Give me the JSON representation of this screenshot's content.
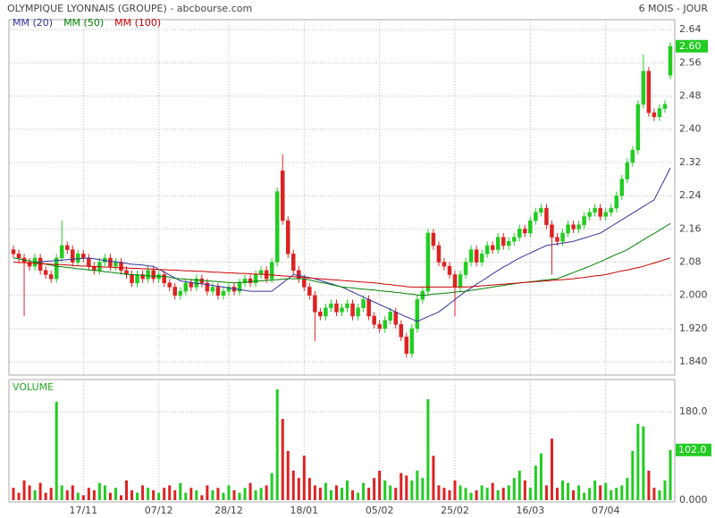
{
  "chart_data": {
    "type": "candlestick",
    "title": "OLYMPIQUE LYONNAIS (GROUPE) - abcbourse.com",
    "subtitle": "6 MOIS - JOUR",
    "volume_title": "VOLUME",
    "categories": [
      null,
      null,
      null,
      null,
      null,
      null,
      null,
      null,
      null,
      null,
      null,
      null,
      null,
      "17/11",
      null,
      null,
      null,
      null,
      null,
      null,
      null,
      null,
      null,
      null,
      null,
      null,
      null,
      "07/12",
      null,
      null,
      null,
      null,
      null,
      null,
      null,
      null,
      null,
      null,
      null,
      null,
      "28/12",
      null,
      null,
      null,
      null,
      null,
      null,
      null,
      null,
      null,
      null,
      null,
      null,
      null,
      "18/01",
      null,
      null,
      null,
      null,
      null,
      null,
      null,
      null,
      null,
      null,
      null,
      null,
      null,
      "05/02",
      null,
      null,
      null,
      null,
      null,
      null,
      null,
      null,
      null,
      null,
      null,
      null,
      null,
      "25/02",
      null,
      null,
      null,
      null,
      null,
      null,
      null,
      null,
      null,
      null,
      null,
      null,
      null,
      "16/03",
      null,
      null,
      null,
      null,
      null,
      null,
      null,
      null,
      null,
      null,
      null,
      null,
      null,
      "07/04",
      null,
      null,
      null,
      null,
      null,
      null,
      null,
      null,
      null,
      null,
      null,
      null
    ],
    "open": [
      2.11,
      2.1,
      2.09,
      2.08,
      2.07,
      2.09,
      2.06,
      2.05,
      2.04,
      2.09,
      2.12,
      2.11,
      2.08,
      2.1,
      2.09,
      2.07,
      2.06,
      2.08,
      2.09,
      2.07,
      2.08,
      2.06,
      2.05,
      2.03,
      2.05,
      2.04,
      2.06,
      2.04,
      2.05,
      2.03,
      2.02,
      2.0,
      2.01,
      2.03,
      2.02,
      2.04,
      2.03,
      2.01,
      2.02,
      2.0,
      2.01,
      2.02,
      2.01,
      2.03,
      2.04,
      2.03,
      2.05,
      2.06,
      2.04,
      2.08,
      2.3,
      2.18,
      2.1,
      2.06,
      2.04,
      2.02,
      2.0,
      1.96,
      1.95,
      1.97,
      1.98,
      1.96,
      1.97,
      1.98,
      1.95,
      1.97,
      1.99,
      1.95,
      1.93,
      1.92,
      1.94,
      1.96,
      1.93,
      1.9,
      1.86,
      1.92,
      1.99,
      2.01,
      2.15,
      2.12,
      2.08,
      2.07,
      2.05,
      2.02,
      2.05,
      2.08,
      2.11,
      2.08,
      2.1,
      2.12,
      2.11,
      2.14,
      2.12,
      2.13,
      2.14,
      2.16,
      2.15,
      2.18,
      2.2,
      2.21,
      2.17,
      2.14,
      2.13,
      2.15,
      2.17,
      2.16,
      2.17,
      2.19,
      2.2,
      2.21,
      2.19,
      2.2,
      2.21,
      2.24,
      2.28,
      2.32,
      2.35,
      2.46,
      2.54,
      2.44,
      2.43,
      2.45,
      2.53
    ],
    "high": [
      2.12,
      2.11,
      2.1,
      2.09,
      2.1,
      2.1,
      2.07,
      2.06,
      2.1,
      2.18,
      2.13,
      2.12,
      2.11,
      2.11,
      2.1,
      2.08,
      2.09,
      2.1,
      2.1,
      2.09,
      2.09,
      2.07,
      2.06,
      2.06,
      2.06,
      2.07,
      2.07,
      2.06,
      2.06,
      2.04,
      2.03,
      2.02,
      2.04,
      2.04,
      2.05,
      2.05,
      2.04,
      2.03,
      2.03,
      2.02,
      2.03,
      2.03,
      2.04,
      2.05,
      2.05,
      2.06,
      2.07,
      2.07,
      2.09,
      2.26,
      2.34,
      2.19,
      2.11,
      2.07,
      2.05,
      2.03,
      2.01,
      1.97,
      1.98,
      1.99,
      1.99,
      1.98,
      1.99,
      1.99,
      1.98,
      2.0,
      2.0,
      1.96,
      1.94,
      1.95,
      1.97,
      1.97,
      1.94,
      1.91,
      1.93,
      2.0,
      2.02,
      2.16,
      2.16,
      2.13,
      2.09,
      2.08,
      2.06,
      2.06,
      2.09,
      2.12,
      2.12,
      2.11,
      2.13,
      2.13,
      2.15,
      2.15,
      2.14,
      2.15,
      2.17,
      2.17,
      2.19,
      2.21,
      2.22,
      2.22,
      2.18,
      2.15,
      2.16,
      2.18,
      2.18,
      2.18,
      2.2,
      2.21,
      2.22,
      2.22,
      2.21,
      2.22,
      2.25,
      2.29,
      2.33,
      2.36,
      2.47,
      2.58,
      2.55,
      2.45,
      2.46,
      2.47,
      2.61
    ],
    "low": [
      2.09,
      2.08,
      1.95,
      2.06,
      2.06,
      2.05,
      2.04,
      2.03,
      2.03,
      2.08,
      2.1,
      2.07,
      2.07,
      2.08,
      2.06,
      2.05,
      2.05,
      2.07,
      2.06,
      2.06,
      2.05,
      2.04,
      2.02,
      2.02,
      2.03,
      2.03,
      2.03,
      2.03,
      2.02,
      2.01,
      1.99,
      1.99,
      2.0,
      2.01,
      2.01,
      2.02,
      2.0,
      2.0,
      1.99,
      1.99,
      2.0,
      2.0,
      2.0,
      2.02,
      2.02,
      2.02,
      2.04,
      2.03,
      2.03,
      2.07,
      2.17,
      2.09,
      2.05,
      2.03,
      2.01,
      1.99,
      1.89,
      1.94,
      1.94,
      1.96,
      1.95,
      1.95,
      1.96,
      1.94,
      1.94,
      1.96,
      1.94,
      1.92,
      1.91,
      1.91,
      1.93,
      1.92,
      1.89,
      1.85,
      1.85,
      1.91,
      1.98,
      2.0,
      2.11,
      2.07,
      2.06,
      2.04,
      1.95,
      2.01,
      2.04,
      2.07,
      2.07,
      2.07,
      2.09,
      2.1,
      2.1,
      2.11,
      2.11,
      2.12,
      2.13,
      2.14,
      2.14,
      2.17,
      2.19,
      2.16,
      2.05,
      2.12,
      2.12,
      2.14,
      2.15,
      2.15,
      2.16,
      2.18,
      2.19,
      2.18,
      2.18,
      2.19,
      2.2,
      2.23,
      2.27,
      2.31,
      2.34,
      2.45,
      2.43,
      2.42,
      2.42,
      2.44,
      2.52
    ],
    "close": [
      2.1,
      2.09,
      2.08,
      2.07,
      2.09,
      2.06,
      2.05,
      2.04,
      2.09,
      2.12,
      2.11,
      2.08,
      2.1,
      2.09,
      2.07,
      2.06,
      2.08,
      2.09,
      2.07,
      2.08,
      2.06,
      2.05,
      2.03,
      2.05,
      2.04,
      2.06,
      2.04,
      2.05,
      2.03,
      2.02,
      2.0,
      2.01,
      2.03,
      2.02,
      2.04,
      2.03,
      2.01,
      2.02,
      2.0,
      2.01,
      2.02,
      2.01,
      2.03,
      2.04,
      2.03,
      2.05,
      2.06,
      2.04,
      2.08,
      2.25,
      2.18,
      2.1,
      2.06,
      2.04,
      2.02,
      2.0,
      1.96,
      1.95,
      1.97,
      1.98,
      1.96,
      1.97,
      1.98,
      1.95,
      1.97,
      1.99,
      1.95,
      1.93,
      1.92,
      1.94,
      1.96,
      1.93,
      1.9,
      1.86,
      1.92,
      1.99,
      2.01,
      2.15,
      2.12,
      2.08,
      2.07,
      2.05,
      2.02,
      2.05,
      2.08,
      2.11,
      2.08,
      2.1,
      2.12,
      2.11,
      2.14,
      2.12,
      2.13,
      2.14,
      2.16,
      2.15,
      2.18,
      2.2,
      2.21,
      2.17,
      2.14,
      2.13,
      2.15,
      2.17,
      2.16,
      2.17,
      2.19,
      2.2,
      2.21,
      2.19,
      2.2,
      2.21,
      2.24,
      2.28,
      2.32,
      2.35,
      2.46,
      2.54,
      2.44,
      2.43,
      2.45,
      2.46,
      2.6
    ],
    "close_label": "2.60",
    "volume": [
      25,
      15,
      40,
      30,
      20,
      35,
      15,
      25,
      200,
      30,
      20,
      30,
      15,
      10,
      25,
      20,
      35,
      30,
      15,
      25,
      10,
      40,
      20,
      15,
      30,
      25,
      20,
      15,
      25,
      30,
      20,
      35,
      15,
      25,
      20,
      10,
      30,
      20,
      25,
      15,
      30,
      20,
      15,
      25,
      35,
      20,
      25,
      30,
      55,
      225,
      165,
      100,
      60,
      45,
      90,
      45,
      30,
      25,
      35,
      20,
      30,
      25,
      40,
      20,
      15,
      35,
      25,
      45,
      60,
      40,
      30,
      25,
      55,
      50,
      40,
      60,
      45,
      205,
      90,
      30,
      25,
      20,
      40,
      30,
      25,
      15,
      20,
      30,
      25,
      35,
      20,
      25,
      30,
      45,
      60,
      40,
      25,
      70,
      95,
      30,
      125,
      25,
      40,
      35,
      20,
      30,
      15,
      25,
      40,
      30,
      35,
      20,
      25,
      30,
      45,
      100,
      155,
      150,
      60,
      25,
      20,
      40,
      102
    ],
    "volume_label": "102.0",
    "series": [
      {
        "name": "MM (20)",
        "color": "#333399",
        "values": [
          null,
          null,
          null,
          null,
          2.08,
          2.081,
          2.082,
          2.083,
          2.084,
          2.085,
          2.086,
          2.087,
          2.088,
          2.089,
          2.09,
          2.088,
          2.086,
          2.084,
          2.082,
          2.081,
          2.079,
          2.077,
          2.075,
          2.074,
          2.073,
          2.071,
          2.07,
          2.063,
          2.056,
          2.049,
          2.042,
          2.035,
          2.033,
          2.031,
          2.029,
          2.028,
          2.026,
          2.024,
          2.022,
          2.02,
          2.018,
          2.016,
          2.014,
          2.012,
          2.01,
          2.01,
          2.01,
          2.01,
          2.01,
          2.02,
          2.03,
          2.04,
          2.05,
          2.048,
          2.045,
          2.043,
          2.04,
          2.036,
          2.032,
          2.028,
          2.024,
          2.02,
          2.014,
          2.008,
          2.002,
          1.996,
          1.99,
          1.984,
          1.978,
          1.972,
          1.966,
          1.96,
          1.954,
          1.948,
          1.943,
          1.937,
          1.943,
          1.949,
          1.954,
          1.96,
          1.97,
          1.98,
          1.99,
          2.0,
          2.01,
          2.018,
          2.027,
          2.035,
          2.043,
          2.052,
          2.06,
          2.068,
          2.075,
          2.083,
          2.09,
          2.096,
          2.102,
          2.108,
          2.114,
          2.12,
          2.122,
          2.124,
          2.126,
          2.128,
          2.13,
          2.134,
          2.138,
          2.142,
          2.146,
          2.15,
          2.158,
          2.166,
          2.174,
          2.182,
          2.19,
          2.198,
          2.206,
          2.214,
          2.222,
          2.23,
          2.256,
          2.281,
          2.307
        ]
      },
      {
        "name": "MM (50)",
        "color": "#008000",
        "values": [
          2.09,
          2.088,
          2.085,
          2.083,
          2.08,
          2.078,
          2.075,
          2.073,
          2.07,
          2.069,
          2.067,
          2.066,
          2.064,
          2.063,
          2.061,
          2.06,
          2.059,
          2.057,
          2.056,
          2.054,
          2.053,
          2.051,
          2.05,
          2.049,
          2.048,
          2.047,
          2.046,
          2.046,
          2.045,
          2.044,
          2.041,
          2.04,
          2.039,
          2.038,
          2.037,
          2.036,
          2.035,
          2.034,
          2.033,
          2.032,
          2.031,
          2.03,
          2.031,
          2.032,
          2.033,
          2.034,
          2.035,
          2.036,
          2.037,
          2.038,
          2.039,
          2.04,
          2.04,
          2.04,
          2.04,
          2.037,
          2.034,
          2.031,
          2.029,
          2.026,
          2.023,
          2.02,
          2.019,
          2.018,
          2.016,
          2.015,
          2.014,
          2.013,
          2.011,
          2.01,
          2.009,
          2.007,
          2.006,
          2.004,
          2.003,
          2.001,
          2.0,
          2.001,
          2.003,
          2.004,
          2.005,
          2.006,
          2.008,
          2.009,
          2.01,
          2.012,
          2.014,
          2.016,
          2.018,
          2.02,
          2.022,
          2.024,
          2.026,
          2.028,
          2.03,
          2.031,
          2.033,
          2.034,
          2.036,
          2.037,
          2.039,
          2.04,
          2.045,
          2.05,
          2.055,
          2.06,
          2.065,
          2.07,
          2.076,
          2.081,
          2.087,
          2.093,
          2.099,
          2.104,
          2.11,
          2.118,
          2.126,
          2.134,
          2.142,
          2.149,
          2.157,
          2.165,
          2.173
        ]
      },
      {
        "name": "MM (100)",
        "color": "#cc0000",
        "values": [
          2.08,
          2.079,
          2.079,
          2.078,
          2.077,
          2.076,
          2.076,
          2.075,
          2.074,
          2.074,
          2.073,
          2.072,
          2.071,
          2.071,
          2.07,
          2.069,
          2.069,
          2.068,
          2.068,
          2.067,
          2.066,
          2.066,
          2.065,
          2.065,
          2.064,
          2.064,
          2.063,
          2.062,
          2.062,
          2.061,
          2.061,
          2.06,
          2.059,
          2.059,
          2.058,
          2.058,
          2.057,
          2.056,
          2.056,
          2.055,
          2.054,
          2.054,
          2.053,
          2.053,
          2.052,
          2.051,
          2.051,
          2.05,
          2.049,
          2.048,
          2.047,
          2.046,
          2.045,
          2.044,
          2.043,
          2.042,
          2.041,
          2.04,
          2.039,
          2.038,
          2.037,
          2.036,
          2.035,
          2.034,
          2.033,
          2.032,
          2.031,
          2.03,
          2.029,
          2.027,
          2.026,
          2.024,
          2.023,
          2.021,
          2.02,
          2.02,
          2.02,
          2.02,
          2.02,
          2.02,
          2.02,
          2.02,
          2.02,
          2.02,
          2.02,
          2.021,
          2.022,
          2.023,
          2.024,
          2.025,
          2.026,
          2.027,
          2.028,
          2.029,
          2.03,
          2.031,
          2.032,
          2.033,
          2.034,
          2.035,
          2.036,
          2.037,
          2.038,
          2.039,
          2.04,
          2.042,
          2.043,
          2.045,
          2.047,
          2.048,
          2.05,
          2.053,
          2.056,
          2.059,
          2.061,
          2.064,
          2.067,
          2.07,
          2.074,
          2.078,
          2.082,
          2.086,
          2.09
        ]
      }
    ],
    "up_color": "#22cc22",
    "down_color": "#dd2222",
    "ylim": [
      1.808,
      2.664
    ],
    "yticks": [
      2.64,
      2.56,
      2.48,
      {
        "value": 2.4,
        "label": "2.40"
      },
      2.32,
      2.24,
      2.16,
      2.08,
      {
        "value": 2.0,
        "label": "2.000"
      },
      {
        "value": 1.92,
        "label": "1.920"
      },
      {
        "value": 1.84,
        "label": "1.840"
      }
    ],
    "y2lim": [
      0,
      245
    ],
    "y2ticks": [
      {
        "value": 0,
        "label": "0.000"
      },
      {
        "value": 180,
        "label": "180.0"
      }
    ],
    "grid": true
  }
}
